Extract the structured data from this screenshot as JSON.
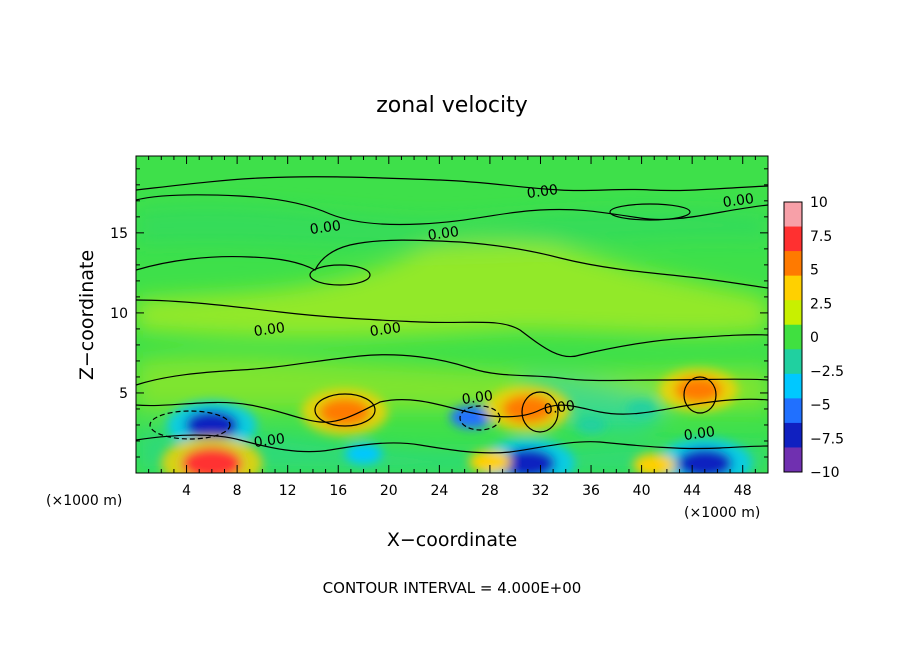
{
  "chart_data": {
    "type": "heatmap",
    "title": "zonal velocity",
    "xlabel": "X−coordinate",
    "ylabel": "Z−coordinate",
    "x_unit_left": "(×1000 m)",
    "x_unit_right": "(×1000 m)",
    "footer": "CONTOUR INTERVAL = 4.000E+00",
    "xlim": [
      0,
      50
    ],
    "ylim": [
      0,
      19.8
    ],
    "x_ticks": [
      4,
      8,
      12,
      16,
      20,
      24,
      28,
      32,
      36,
      40,
      44,
      48
    ],
    "x_ticklabels": [
      "4",
      "8",
      "12",
      "16",
      "20",
      "24",
      "28",
      "32",
      "36",
      "40",
      "44",
      "48"
    ],
    "y_ticks": [
      5,
      10,
      15
    ],
    "y_ticklabels": [
      "5",
      "10",
      "15"
    ],
    "colorbar": {
      "range": [
        -10,
        10
      ],
      "ticks": [
        10,
        7.5,
        5,
        2.5,
        0,
        -2.5,
        -5,
        -7.5,
        -10
      ],
      "ticklabels": [
        "10",
        "7.5",
        "5",
        "2.5",
        "0",
        "−2.5",
        "−5",
        "−7.5",
        "−10"
      ],
      "colors": [
        "#f7a0a8",
        "#ff3030",
        "#ff7a00",
        "#ffd000",
        "#c8f000",
        "#40e040",
        "#20d0a0",
        "#00c8ff",
        "#2070ff",
        "#1020c0",
        "#7030b0"
      ]
    },
    "background_color": "#3ee04a",
    "contour_label": "0.00",
    "features": [
      {
        "x": 6,
        "y": 3.0,
        "value": -7.5
      },
      {
        "x": 6,
        "y": 0.6,
        "value": 9
      },
      {
        "x": 16.5,
        "y": 3.8,
        "value": 7
      },
      {
        "x": 26.5,
        "y": 3.5,
        "value": -5
      },
      {
        "x": 31,
        "y": 4.0,
        "value": 7
      },
      {
        "x": 31,
        "y": 0.6,
        "value": -8
      },
      {
        "x": 44.5,
        "y": 5.2,
        "value": 6
      },
      {
        "x": 45,
        "y": 0.6,
        "value": -8
      },
      {
        "x": 28,
        "y": 0.7,
        "value": 5
      },
      {
        "x": 41,
        "y": 0.5,
        "value": 5
      },
      {
        "x": 18,
        "y": 1.2,
        "value": -4
      },
      {
        "x": 36,
        "y": 3.0,
        "value": -2.5
      },
      {
        "x": 40,
        "y": 4.0,
        "value": -2.5
      }
    ]
  }
}
